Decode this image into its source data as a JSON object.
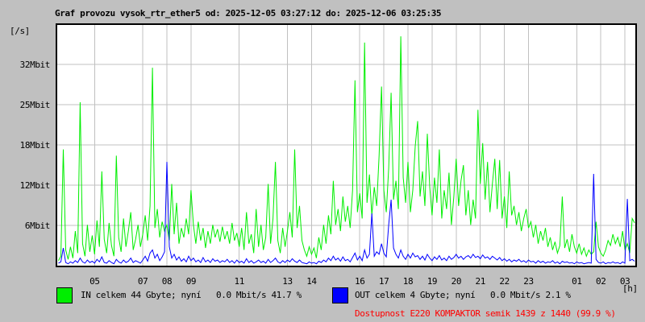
{
  "title": "Graf provozu vysok_rtr_ether5 od: 2025-12-05 03:27:12 do: 2025-12-06 03:25:35",
  "y_axis_unit": "[/s]",
  "x_axis_unit": "[h]",
  "legend": {
    "in": {
      "label": "IN celkem 44 Gbyte; nyní   0.0 Mbit/s 41.7 %",
      "color": "#00ee00"
    },
    "out": {
      "label": "OUT celkem 4 Gbyte; nyní   0.0 Mbit/s 2.1 %",
      "color": "#0000ff"
    }
  },
  "availability": {
    "text": "Dostupnost E220 KOMPAKTOR semik 1439 z 1440 (99.9 %)",
    "color": "#ff0000"
  },
  "colors": {
    "background": "#c0c0c0",
    "plot_background": "#ffffff",
    "grid": "#c0c0c0",
    "frame": "#000000",
    "in_line": "#00ee00",
    "out_line": "#0000ff"
  },
  "chart_data": {
    "type": "line",
    "title": "Graf provozu vysok_rtr_ether5",
    "period_from": "2025-12-05 03:27:12",
    "period_to": "2025-12-06 03:25:35",
    "xlabel": "[h]",
    "ylabel": "[/s]",
    "grid": true,
    "legend_position": "bottom",
    "t_start_hour": 3.45,
    "t_end_hour": 27.43,
    "t_step_hour": 0.1,
    "ylim": [
      0,
      38.3
    ],
    "y_ticks": [
      {
        "label": "32Mbit",
        "value": 32.0
      },
      {
        "label": "25Mbit",
        "value": 25.6
      },
      {
        "label": "18Mbit",
        "value": 19.2
      },
      {
        "label": "12Mbit",
        "value": 12.8
      },
      {
        "label": "6Mbit",
        "value": 6.4
      }
    ],
    "x_ticks": [
      {
        "label": "05",
        "hour": 5
      },
      {
        "label": "07",
        "hour": 7
      },
      {
        "label": "08",
        "hour": 8
      },
      {
        "label": "09",
        "hour": 9
      },
      {
        "label": "11",
        "hour": 11
      },
      {
        "label": "13",
        "hour": 13
      },
      {
        "label": "14",
        "hour": 14
      },
      {
        "label": "16",
        "hour": 16
      },
      {
        "label": "17",
        "hour": 17
      },
      {
        "label": "18",
        "hour": 18
      },
      {
        "label": "19",
        "hour": 19
      },
      {
        "label": "20",
        "hour": 20
      },
      {
        "label": "21",
        "hour": 21
      },
      {
        "label": "22",
        "hour": 22
      },
      {
        "label": "23",
        "hour": 23
      },
      {
        "label": "01",
        "hour": 25
      },
      {
        "label": "02",
        "hour": 26
      },
      {
        "label": "03",
        "hour": 27
      }
    ],
    "series": [
      {
        "name": "IN",
        "unit": "Mbit/s",
        "color": "#00ee00",
        "values": [
          0.8,
          1.5,
          18.5,
          2.5,
          1.0,
          3.0,
          1.2,
          5.5,
          2.0,
          26.0,
          3.5,
          1.5,
          6.5,
          2.2,
          4.8,
          1.8,
          7.2,
          3.0,
          15.0,
          4.2,
          2.0,
          6.8,
          3.2,
          1.5,
          17.5,
          4.5,
          2.2,
          7.5,
          3.0,
          5.5,
          8.5,
          2.5,
          4.2,
          6.5,
          3.0,
          5.0,
          8.0,
          4.0,
          9.5,
          31.5,
          6.0,
          9.0,
          4.5,
          7.0,
          5.5,
          6.5,
          4.0,
          13.0,
          5.0,
          10.0,
          3.5,
          6.0,
          4.5,
          7.5,
          5.0,
          12.0,
          6.5,
          3.5,
          7.0,
          4.0,
          6.0,
          2.8,
          5.5,
          3.5,
          6.5,
          4.5,
          5.8,
          3.8,
          6.2,
          4.2,
          5.5,
          3.5,
          6.8,
          4.0,
          5.2,
          3.0,
          6.0,
          2.5,
          8.5,
          3.5,
          5.0,
          2.0,
          9.0,
          3.0,
          6.5,
          2.5,
          4.5,
          13.0,
          3.5,
          7.5,
          16.5,
          4.0,
          2.0,
          6.0,
          3.0,
          5.5,
          8.5,
          4.5,
          18.5,
          6.0,
          9.5,
          4.0,
          2.5,
          1.5,
          3.0,
          1.8,
          2.8,
          1.2,
          4.5,
          2.5,
          6.5,
          3.5,
          8.0,
          5.0,
          13.5,
          6.5,
          9.0,
          5.5,
          11.0,
          7.0,
          9.5,
          6.0,
          12.0,
          29.5,
          8.5,
          11.5,
          7.5,
          35.5,
          10.0,
          14.5,
          8.0,
          12.5,
          9.5,
          17.5,
          28.5,
          12.0,
          8.5,
          15.5,
          27.5,
          10.5,
          13.5,
          9.0,
          36.5,
          14.0,
          10.0,
          16.5,
          8.5,
          12.0,
          19.0,
          23.0,
          11.0,
          15.0,
          9.5,
          21.0,
          12.5,
          8.0,
          14.0,
          10.0,
          18.5,
          7.5,
          12.0,
          9.0,
          14.8,
          6.5,
          11.0,
          17.0,
          9.5,
          13.5,
          16.0,
          8.0,
          12.0,
          6.5,
          10.5,
          7.5,
          24.8,
          13.0,
          19.5,
          10.5,
          16.5,
          8.5,
          13.0,
          17.0,
          9.0,
          16.8,
          7.5,
          11.0,
          6.0,
          15.0,
          8.0,
          9.5,
          6.5,
          8.5,
          5.5,
          7.5,
          9.0,
          6.0,
          7.0,
          4.5,
          6.5,
          3.5,
          5.5,
          4.0,
          6.0,
          3.0,
          4.5,
          2.5,
          3.8,
          2.0,
          3.2,
          11.0,
          2.8,
          4.2,
          2.2,
          5.0,
          3.0,
          2.0,
          3.5,
          1.8,
          2.8,
          1.5,
          2.5,
          1.8,
          2.2,
          7.0,
          3.0,
          2.0,
          1.5,
          2.5,
          4.0,
          3.2,
          5.0,
          3.5,
          4.5,
          3.0,
          5.5,
          2.5,
          3.5,
          2.0,
          7.5,
          6.8
        ]
      },
      {
        "name": "OUT",
        "unit": "Mbit/s",
        "color": "#0000ff",
        "values": [
          0.4,
          0.6,
          2.8,
          0.5,
          0.3,
          0.6,
          0.4,
          0.8,
          0.5,
          1.2,
          0.6,
          0.4,
          0.9,
          0.5,
          0.7,
          0.4,
          1.0,
          0.6,
          1.4,
          0.5,
          0.4,
          0.8,
          0.5,
          0.3,
          1.0,
          0.6,
          0.4,
          0.9,
          0.5,
          0.7,
          1.2,
          0.5,
          0.8,
          0.6,
          0.4,
          0.9,
          1.5,
          0.7,
          2.0,
          2.5,
          1.2,
          1.8,
          0.8,
          1.4,
          2.2,
          16.5,
          3.0,
          1.2,
          1.8,
          0.9,
          1.4,
          0.7,
          1.1,
          0.6,
          1.5,
          0.8,
          1.2,
          0.6,
          0.9,
          0.5,
          1.3,
          0.6,
          0.9,
          0.5,
          1.1,
          0.7,
          0.9,
          0.5,
          0.8,
          0.6,
          1.0,
          0.5,
          0.8,
          0.4,
          0.9,
          0.5,
          0.7,
          0.4,
          1.1,
          0.5,
          0.8,
          0.4,
          0.6,
          0.9,
          0.5,
          0.7,
          0.4,
          1.0,
          0.5,
          0.8,
          1.2,
          0.6,
          0.4,
          0.8,
          0.5,
          0.9,
          0.6,
          1.1,
          0.7,
          0.5,
          0.9,
          0.5,
          0.4,
          0.3,
          0.6,
          0.4,
          0.5,
          0.3,
          0.7,
          0.5,
          0.9,
          0.6,
          1.2,
          0.8,
          1.5,
          0.9,
          1.2,
          0.7,
          1.4,
          0.8,
          1.0,
          0.6,
          1.3,
          2.0,
          0.9,
          1.5,
          0.8,
          2.5,
          1.2,
          1.8,
          8.3,
          1.5,
          2.2,
          1.8,
          3.5,
          2.0,
          1.4,
          6.5,
          10.5,
          2.8,
          1.8,
          1.2,
          2.5,
          1.5,
          1.0,
          1.8,
          1.2,
          2.0,
          1.4,
          1.6,
          1.0,
          1.5,
          0.9,
          1.8,
          1.2,
          0.8,
          1.4,
          1.0,
          1.6,
          0.9,
          1.2,
          0.8,
          1.5,
          1.0,
          1.3,
          1.8,
          1.2,
          1.5,
          1.0,
          1.4,
          1.6,
          1.2,
          1.8,
          1.3,
          1.5,
          1.1,
          1.7,
          1.2,
          1.4,
          1.0,
          1.5,
          1.2,
          0.9,
          1.3,
          0.8,
          1.1,
          0.7,
          1.0,
          0.6,
          0.9,
          0.7,
          1.0,
          0.6,
          0.8,
          0.5,
          0.9,
          0.6,
          0.7,
          0.4,
          0.8,
          0.5,
          0.7,
          0.4,
          0.6,
          0.5,
          0.8,
          0.4,
          0.6,
          0.3,
          0.7,
          0.5,
          0.6,
          0.4,
          0.5,
          0.3,
          0.6,
          0.4,
          0.5,
          0.3,
          0.4,
          0.5,
          0.4,
          14.6,
          1.0,
          0.5,
          0.4,
          0.6,
          0.3,
          0.5,
          0.4,
          0.6,
          0.4,
          0.5,
          0.3,
          0.6,
          0.4,
          10.6,
          0.8,
          1.0,
          0.7
        ]
      }
    ]
  }
}
